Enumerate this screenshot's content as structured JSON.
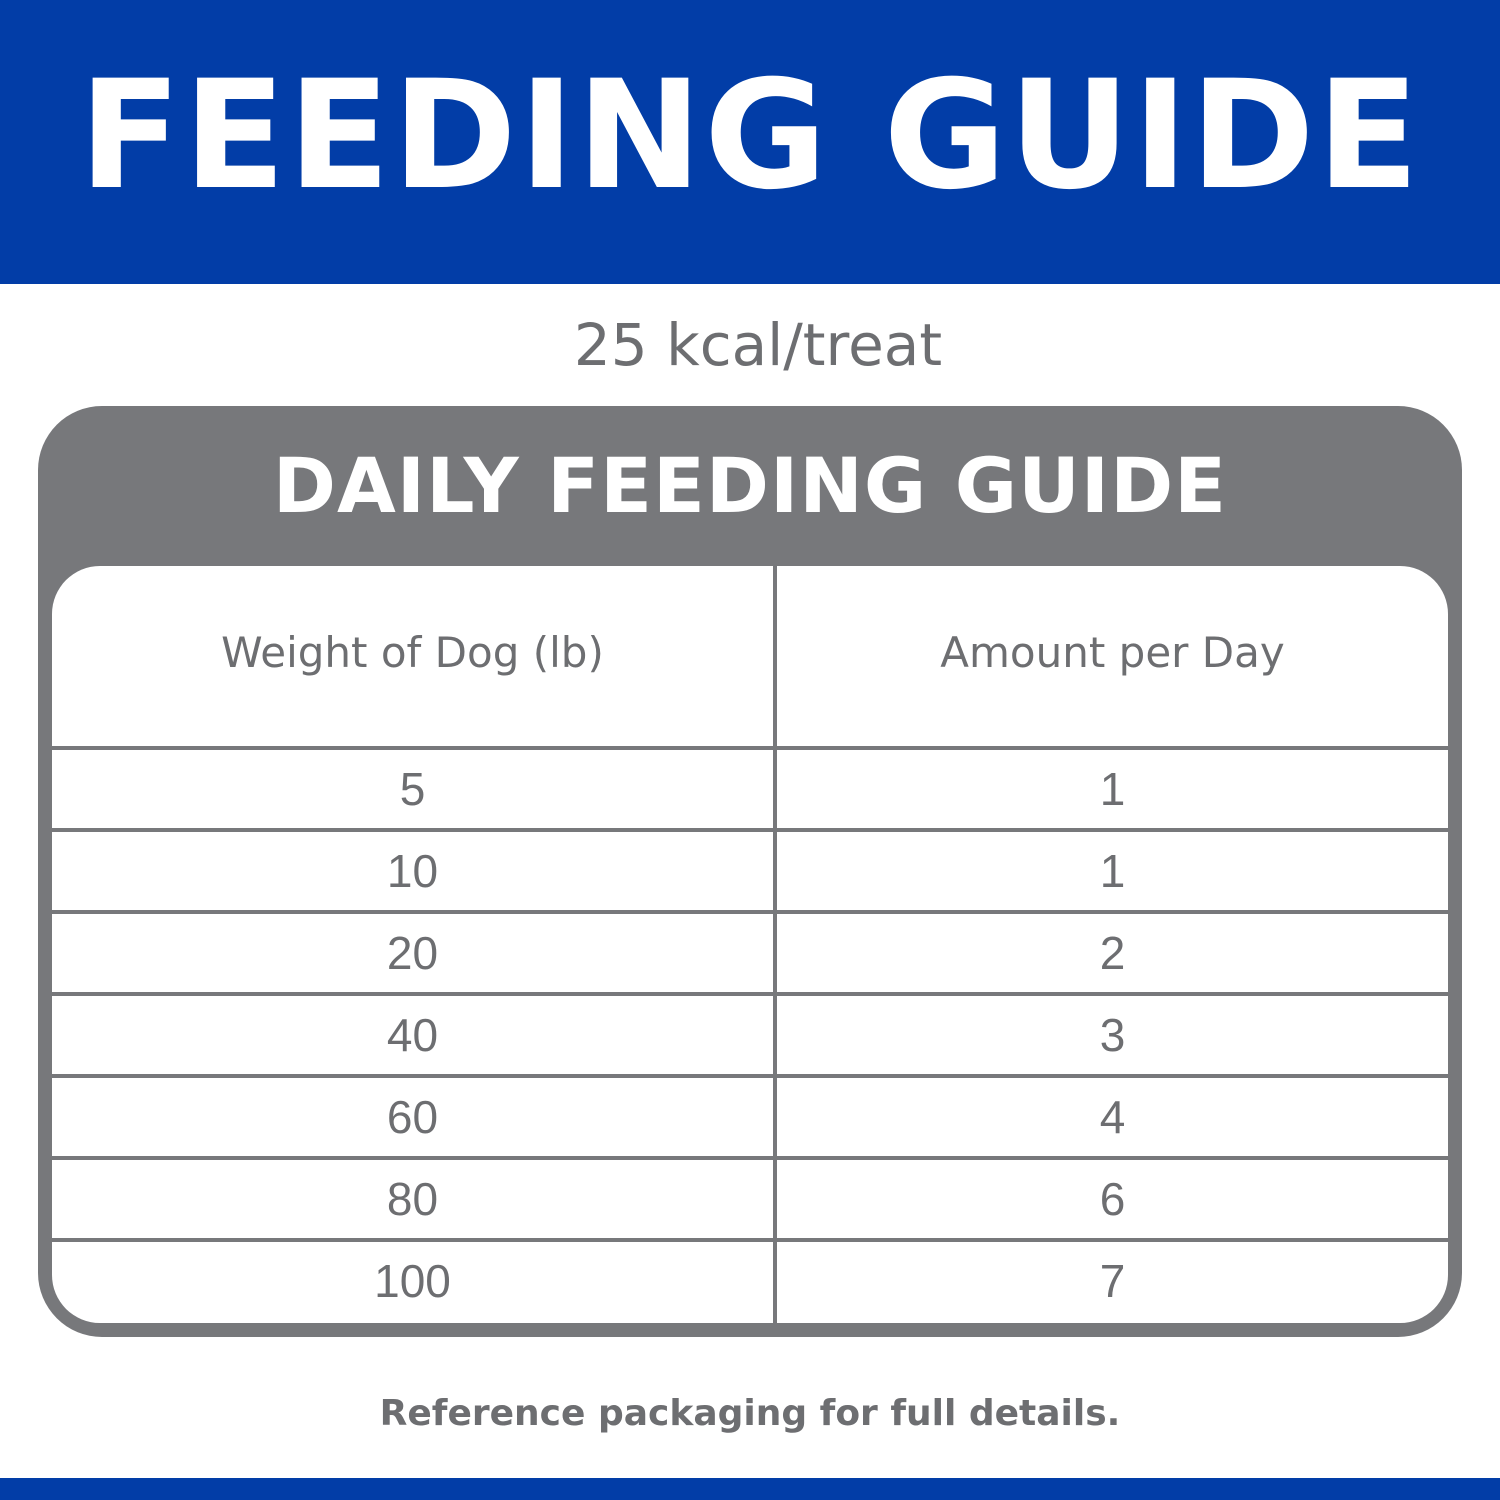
{
  "header": {
    "title": "FEEDING GUIDE"
  },
  "subtitle": "25 kcal/treat",
  "guide": {
    "title": "DAILY FEEDING GUIDE",
    "columns": [
      "Weight of Dog (lb)",
      "Amount per Day"
    ],
    "rows": [
      {
        "weight": "5",
        "amount": "1"
      },
      {
        "weight": "10",
        "amount": "1"
      },
      {
        "weight": "20",
        "amount": "2"
      },
      {
        "weight": "40",
        "amount": "3"
      },
      {
        "weight": "60",
        "amount": "4"
      },
      {
        "weight": "80",
        "amount": "6"
      },
      {
        "weight": "100",
        "amount": "7"
      }
    ]
  },
  "footnote": "Reference packaging for full details.",
  "colors": {
    "brand_blue": "#023da7",
    "card_gray": "#77787b",
    "text_gray": "#6d6e71"
  }
}
